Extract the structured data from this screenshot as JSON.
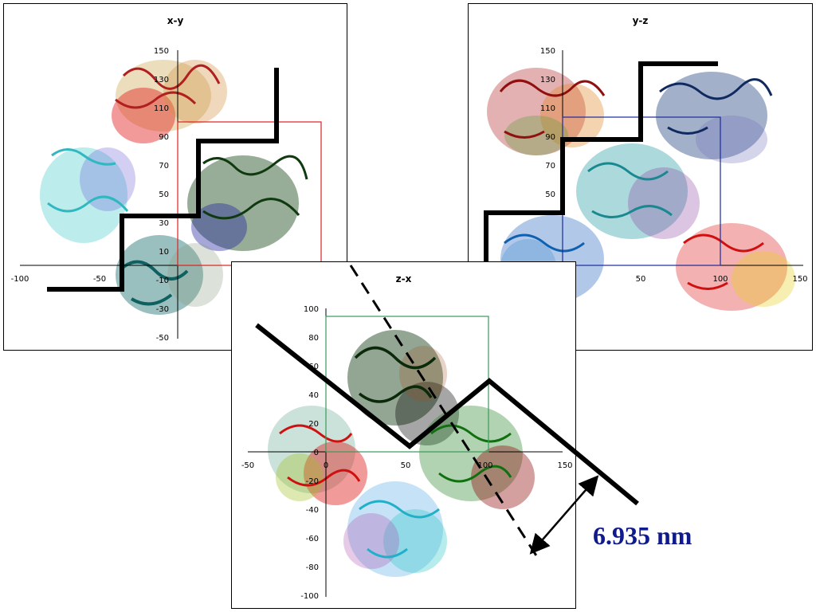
{
  "panels": {
    "xy": {
      "title": "x-y",
      "x_ticks": [
        "-100",
        "-50"
      ],
      "y_ticks": [
        "150",
        "130",
        "110",
        "90",
        "70",
        "50",
        "30",
        "10",
        "-10",
        "-30",
        "-50"
      ],
      "box_color": "#e02020"
    },
    "yz": {
      "title": "y-z",
      "x_ticks": [
        "50",
        "100",
        "150"
      ],
      "y_ticks": [
        "150",
        "130",
        "110",
        "90",
        "70",
        "50"
      ],
      "box_color": "#1a2a9c"
    },
    "zx": {
      "title": "z-x",
      "x_ticks": [
        "-50",
        "0",
        "50",
        "100",
        "150"
      ],
      "y_ticks": [
        "100",
        "80",
        "60",
        "40",
        "20",
        "0",
        "-20",
        "-40",
        "-60",
        "-80",
        "-100"
      ],
      "box_color": "#3a9a5a"
    }
  },
  "measurement": "6.935 nm",
  "colors": {
    "measurement_text": "#0f1a8c",
    "cut_line": "#000000"
  }
}
